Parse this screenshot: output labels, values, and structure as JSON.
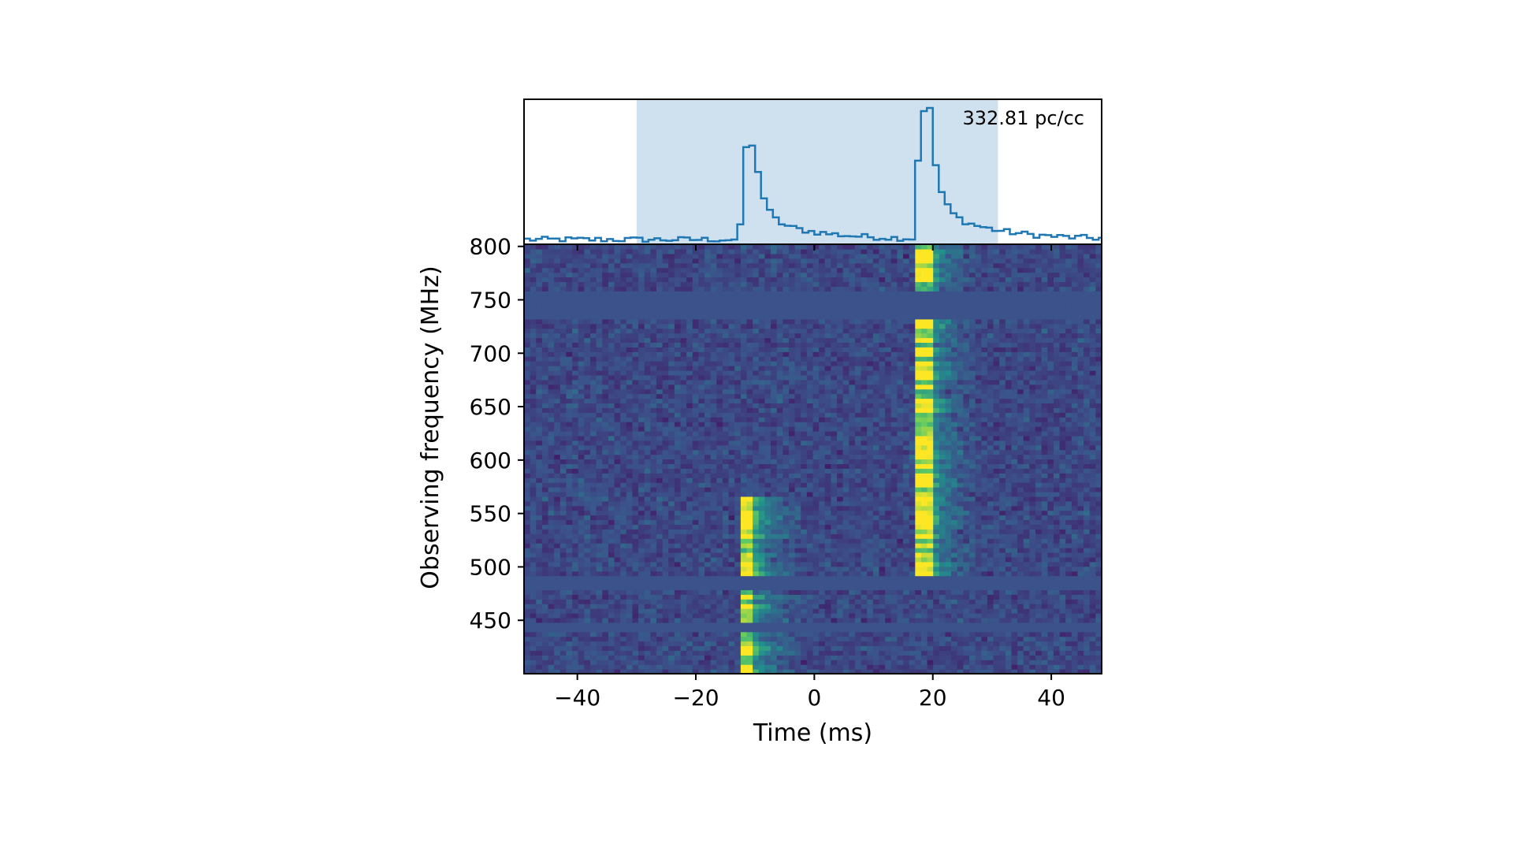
{
  "chart_data": {
    "type": "heatmap",
    "title": "",
    "annotation": "332.81 pc/cc",
    "xlabel": "Time (ms)",
    "ylabel": "Observing frequency (MHz)",
    "xlim": [
      -49,
      48.5
    ],
    "ylim": [
      400,
      802
    ],
    "x_ticks": [
      -40,
      -20,
      0,
      20,
      40
    ],
    "x_tick_labels": [
      "−40",
      "−20",
      "0",
      "20",
      "40"
    ],
    "y_ticks": [
      450,
      500,
      550,
      600,
      650,
      700,
      750,
      800
    ],
    "y_tick_labels": [
      "450",
      "500",
      "550",
      "600",
      "650",
      "700",
      "750",
      "800"
    ],
    "colormap": [
      "#440154",
      "#3b528b",
      "#21918c",
      "#5ec962",
      "#fde725"
    ],
    "profile": {
      "line_color": "#1f77b4",
      "shade_color": "#cfe1ee",
      "shaded_range": [
        -30,
        31
      ],
      "peaks": [
        {
          "time": -11.5,
          "relative_height": 0.66
        },
        {
          "time": 18.0,
          "relative_height": 0.92
        }
      ]
    },
    "bursts": [
      {
        "time": -11.5,
        "freq_range": [
          400,
          565
        ]
      },
      {
        "time": 18.0,
        "freq_range": [
          490,
          800
        ]
      }
    ],
    "masked_bands": [
      [
        730,
        760
      ],
      [
        480,
        490
      ],
      [
        440,
        450
      ]
    ]
  }
}
